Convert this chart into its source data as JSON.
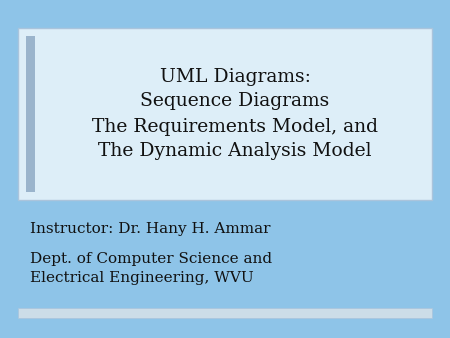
{
  "background_color": "#8ec4e8",
  "box_color": "#ddeef8",
  "box_edge_color": "#aac4dc",
  "box_left_bar_color": "#9ab4cc",
  "title_lines": [
    "UML Diagrams:",
    "Sequence Diagrams",
    "The Requirements Model, and",
    "The Dynamic Analysis Model"
  ],
  "title_fontsize": 13.5,
  "title_color": "#111111",
  "instructor_line": "Instructor: Dr. Hany H. Ammar",
  "dept_line1": "Dept. of Computer Science and",
  "dept_line2": "Electrical Engineering, WVU",
  "info_fontsize": 11.0,
  "info_color": "#111111",
  "bottom_bar_color": "#ccdde8"
}
